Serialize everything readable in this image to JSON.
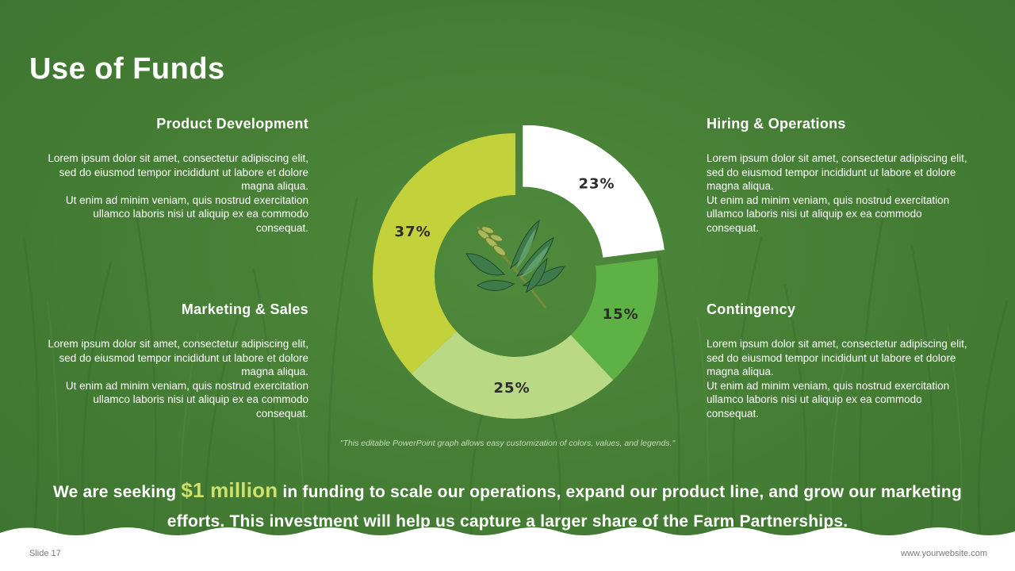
{
  "title": "Use of Funds",
  "colors": {
    "background": "#467f35",
    "accent": "#cfe06b",
    "white": "#ffffff"
  },
  "sections": {
    "product_development": {
      "heading": "Product Development",
      "body": "Lorem ipsum dolor sit amet, consectetur adipiscing elit, sed do eiusmod tempor incididunt ut labore et dolore magna aliqua.\nUt enim ad minim veniam, quis nostrud exercitation ullamco laboris nisi ut aliquip ex ea commodo consequat."
    },
    "marketing_sales": {
      "heading": "Marketing & Sales",
      "body": "Lorem ipsum dolor sit amet, consectetur adipiscing elit, sed do eiusmod tempor incididunt ut labore et dolore magna aliqua.\nUt enim ad minim veniam, quis nostrud exercitation ullamco laboris nisi ut aliquip ex ea commodo consequat."
    },
    "hiring_operations": {
      "heading": "Hiring & Operations",
      "body": "Lorem ipsum dolor sit amet, consectetur adipiscing elit, sed do eiusmod tempor incididunt ut labore et dolore magna aliqua.\nUt enim ad minim veniam, quis nostrud exercitation ullamco laboris nisi ut aliquip ex ea commodo consequat."
    },
    "contingency": {
      "heading": "Contingency",
      "body": "Lorem ipsum dolor sit amet, consectetur adipiscing elit, sed do eiusmod tempor incididunt ut labore et dolore magna aliqua.\nUt enim ad minim veniam, quis nostrud exercitation ullamco laboris nisi ut aliquip ex ea commodo consequat."
    }
  },
  "note": "\"This editable PowerPoint graph allows easy customization of colors, values, and legends.\"",
  "cta": {
    "before": "We are seeking",
    "amount": "$1 million",
    "after": "in funding to scale our operations, expand our product line, and grow our marketing efforts. This investment will help us capture a larger share of the Farm Partnerships."
  },
  "footer": {
    "slide": "Slide 17",
    "website": "www.yourwebsite.com"
  },
  "chart_data": {
    "type": "pie",
    "style": "donut",
    "slices": [
      {
        "label": "23%",
        "value": 23,
        "color": "#ffffff",
        "exploded": true
      },
      {
        "label": "15%",
        "value": 15,
        "color": "#5db145"
      },
      {
        "label": "25%",
        "value": 25,
        "color": "#bad985"
      },
      {
        "label": "37%",
        "value": 37,
        "color": "#c3d13b"
      }
    ],
    "center_icon": "wheat-icon"
  }
}
